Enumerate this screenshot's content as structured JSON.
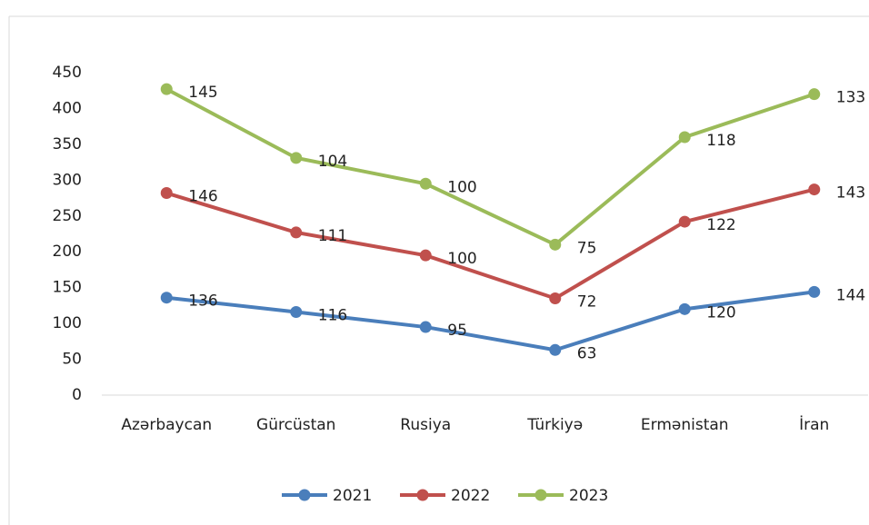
{
  "chart_data": {
    "type": "line",
    "stacked": true,
    "categories": [
      "Azərbaycan",
      "Gürcüstan",
      "Rusiya",
      "Türkiyə",
      "Ermənistan",
      "İran"
    ],
    "series": [
      {
        "name": "2021",
        "color": "#4a7ebb",
        "values": [
          136,
          116,
          95,
          63,
          120,
          144
        ]
      },
      {
        "name": "2022",
        "color": "#c0504d",
        "values": [
          146,
          111,
          100,
          72,
          122,
          143
        ]
      },
      {
        "name": "2023",
        "color": "#9bbb59",
        "values": [
          145,
          104,
          100,
          75,
          118,
          133
        ]
      }
    ],
    "ylim": [
      0,
      450
    ],
    "yticks": [
      0,
      50,
      100,
      150,
      200,
      250,
      300,
      350,
      400,
      450
    ],
    "legend": "bottom"
  }
}
